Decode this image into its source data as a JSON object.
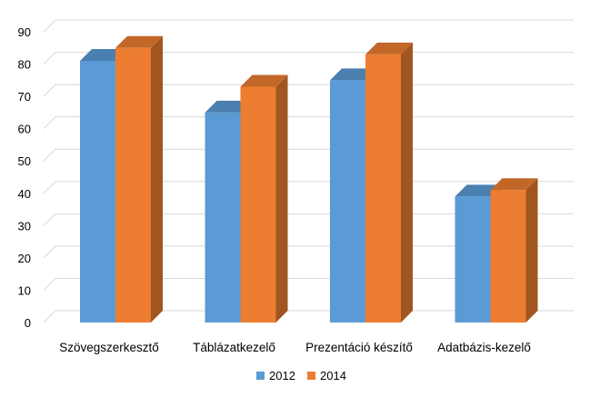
{
  "chart_data": {
    "type": "bar",
    "style": "3d-clustered-column",
    "title": "",
    "xlabel": "",
    "ylabel": "",
    "categories": [
      "Szövegszerkesztő",
      "Táblázatkezelő",
      "Prezentáció készítő",
      "Adatbázis-kezelő"
    ],
    "series": [
      {
        "name": "2012",
        "values": [
          81,
          65,
          75,
          39
        ],
        "color": "#5B9BD5"
      },
      {
        "name": "2014",
        "values": [
          85,
          73,
          83,
          41
        ],
        "color": "#ED7D31"
      }
    ],
    "ylim": [
      0,
      90
    ],
    "yticks": [
      "0",
      "10",
      "20",
      "30",
      "40",
      "50",
      "60",
      "70",
      "80",
      "90"
    ],
    "grid": true,
    "legend": "bottom"
  },
  "colors": {
    "series_2012": "#5B9BD5",
    "series_2014": "#ED7D31",
    "gridline": "#D9D9D9"
  }
}
